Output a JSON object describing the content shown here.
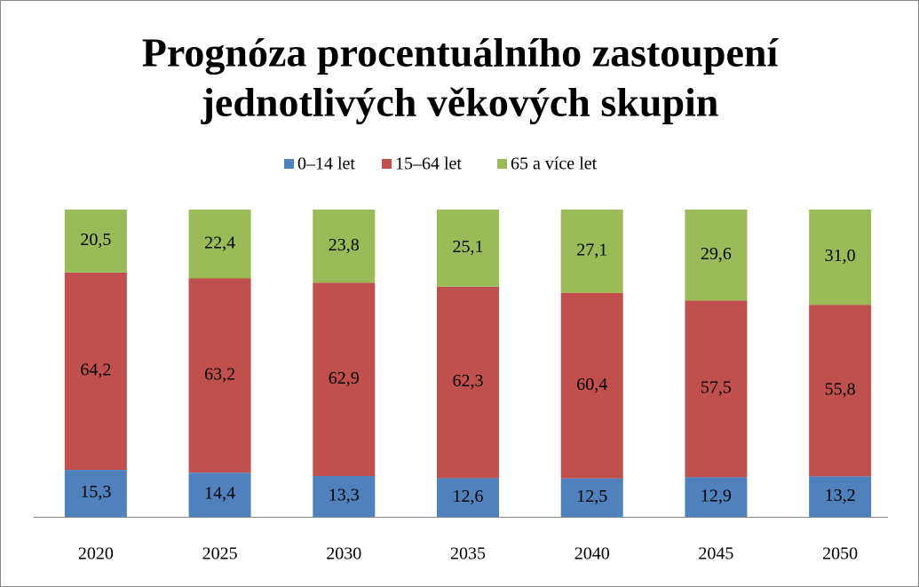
{
  "chart_data": {
    "type": "stacked_bar",
    "title": [
      "Prognóza procentuálního zastoupení",
      "jednotlivých věkových  skupin"
    ],
    "categories": [
      "2020",
      "2025",
      "2030",
      "2035",
      "2040",
      "2045",
      "2050"
    ],
    "series": [
      {
        "name": "0–14 let",
        "color": "#4f81bd",
        "values": [
          15.3,
          14.4,
          13.3,
          12.6,
          12.5,
          12.9,
          13.2
        ],
        "value_labels": [
          "15,3",
          "14,4",
          "13,3",
          "12,6",
          "12,5",
          "12,9",
          "13,2"
        ]
      },
      {
        "name": "15–64 let",
        "color": "#c0504d",
        "values": [
          64.2,
          63.2,
          62.9,
          62.3,
          60.4,
          57.5,
          55.8
        ],
        "value_labels": [
          "64,2",
          "63,2",
          "62,9",
          "62,3",
          "60,4",
          "57,5",
          "55,8"
        ]
      },
      {
        "name": "65 a více let",
        "color": "#9bbb59",
        "values": [
          20.5,
          22.4,
          23.8,
          25.1,
          27.1,
          29.6,
          31.0
        ],
        "value_labels": [
          "20,5",
          "22,4",
          "23,8",
          "25,1",
          "27,1",
          "29,6",
          "31,0"
        ]
      }
    ],
    "ylim": [
      0,
      100
    ],
    "legend": "top"
  }
}
